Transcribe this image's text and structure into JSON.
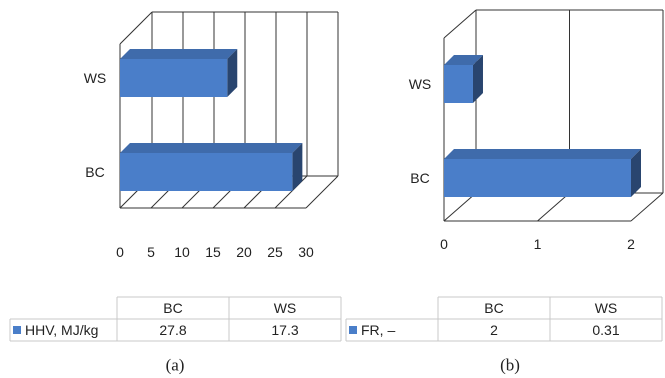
{
  "chart_data": [
    {
      "type": "bar",
      "orientation": "horizontal",
      "style": "3d",
      "categories": [
        "WS",
        "BC"
      ],
      "series": [
        {
          "name": "HHV, MJ/kg",
          "values": [
            17.3,
            27.8
          ]
        }
      ],
      "xlim": [
        0,
        30
      ],
      "xticks": [
        "0",
        "5",
        "10",
        "15",
        "20",
        "25",
        "30"
      ],
      "grid": true,
      "table": {
        "headers": [
          "BC",
          "WS"
        ],
        "row_label": "HHV, MJ/kg",
        "cells": [
          "27.8",
          "17.3"
        ]
      },
      "caption": "(a)",
      "color": "#4a7ec9"
    },
    {
      "type": "bar",
      "orientation": "horizontal",
      "style": "3d",
      "categories": [
        "WS",
        "BC"
      ],
      "series": [
        {
          "name": "FR, –",
          "values": [
            0.31,
            2
          ]
        }
      ],
      "xlim": [
        0,
        2
      ],
      "xticks": [
        "0",
        "1",
        "2"
      ],
      "grid": true,
      "table": {
        "headers": [
          "BC",
          "WS"
        ],
        "row_label": "FR, –",
        "cells": [
          "2",
          "0.31"
        ]
      },
      "caption": "(b)",
      "color": "#4a7ec9"
    }
  ]
}
